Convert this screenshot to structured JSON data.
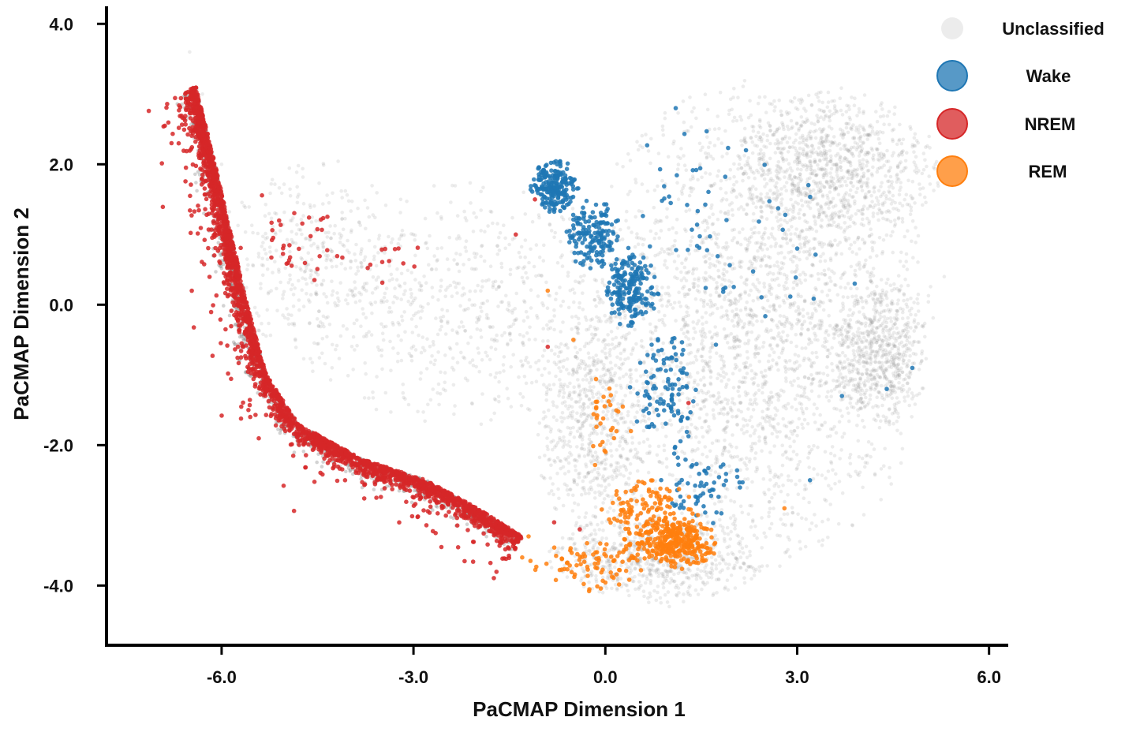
{
  "chart_data": {
    "type": "scatter",
    "title": "",
    "xlabel": "PaCMAP Dimension 1",
    "ylabel": "PaCMAP Dimension 2",
    "xlim": [
      -7.8,
      6.3
    ],
    "ylim": [
      -4.85,
      4.25
    ],
    "x_ticks": [
      -6.0,
      -3.0,
      0.0,
      3.0,
      6.0
    ],
    "y_ticks": [
      -4.0,
      -2.0,
      0.0,
      2.0,
      4.0
    ],
    "x_tick_labels": [
      "-6.0",
      "-3.0",
      "0.0",
      "3.0",
      "6.0"
    ],
    "y_tick_labels": [
      "-4.0",
      "-2.0",
      "0.0",
      "2.0",
      "4.0"
    ],
    "grid": false,
    "legend_position": "top-right",
    "series": [
      {
        "name": "Unclassified",
        "color": "#808080",
        "opacity": 0.15,
        "regions": [
          {
            "cx": 2.3,
            "cy": -0.3,
            "rx": 2.6,
            "ry": 3.2,
            "n": 2600
          },
          {
            "cx": 3.6,
            "cy": 1.9,
            "rx": 1.5,
            "ry": 1.1,
            "n": 900
          },
          {
            "cx": 4.3,
            "cy": -0.7,
            "rx": 0.7,
            "ry": 1.0,
            "n": 600
          },
          {
            "cx": 0.8,
            "cy": -3.6,
            "rx": 1.6,
            "ry": 0.6,
            "n": 700
          },
          {
            "cx": -0.2,
            "cy": -1.8,
            "rx": 0.8,
            "ry": 1.6,
            "n": 600
          },
          {
            "cx": -2.2,
            "cy": 0.0,
            "rx": 2.6,
            "ry": 1.6,
            "n": 700
          },
          {
            "cx": -4.6,
            "cy": 0.7,
            "rx": 1.3,
            "ry": 1.3,
            "n": 300
          }
        ],
        "points": [
          [
            -6.5,
            3.6
          ],
          [
            -6.3,
            3.0
          ],
          [
            -6.0,
            2.0
          ],
          [
            -5.6,
            0.5
          ],
          [
            -3.2,
            1.5
          ],
          [
            5.3,
            0.4
          ],
          [
            1.0,
            -4.3
          ]
        ]
      },
      {
        "name": "Wake",
        "color": "#1f77b4",
        "opacity": 0.85,
        "regions": [
          {
            "cx": -0.8,
            "cy": 1.7,
            "rx": 0.35,
            "ry": 0.35,
            "n": 220
          },
          {
            "cx": -0.2,
            "cy": 1.0,
            "rx": 0.4,
            "ry": 0.45,
            "n": 160
          },
          {
            "cx": 0.4,
            "cy": 0.2,
            "rx": 0.4,
            "ry": 0.5,
            "n": 200
          },
          {
            "cx": 0.9,
            "cy": -1.2,
            "rx": 0.5,
            "ry": 0.9,
            "n": 110
          },
          {
            "cx": 1.5,
            "cy": -2.6,
            "rx": 0.6,
            "ry": 0.5,
            "n": 60
          },
          {
            "cx": 1.8,
            "cy": 1.0,
            "rx": 1.7,
            "ry": 1.5,
            "n": 55
          }
        ],
        "points": [
          [
            4.8,
            -0.9
          ],
          [
            4.4,
            -1.2
          ],
          [
            3.2,
            -2.5
          ],
          [
            3.0,
            0.8
          ],
          [
            1.1,
            2.8
          ],
          [
            2.2,
            2.2
          ],
          [
            3.7,
            -1.3
          ],
          [
            3.9,
            0.3
          ]
        ]
      },
      {
        "name": "NREM",
        "color": "#d62728",
        "opacity": 0.85,
        "regions": [
          {
            "cx": -4.9,
            "cy": 0.9,
            "rx": 0.9,
            "ry": 0.8,
            "n": 35
          },
          {
            "cx": -3.3,
            "cy": 0.6,
            "rx": 0.6,
            "ry": 0.5,
            "n": 12
          }
        ],
        "points": [
          [
            -0.9,
            -0.6
          ],
          [
            -1.4,
            1.0
          ],
          [
            -1.1,
            1.5
          ],
          [
            -0.4,
            -3.2
          ],
          [
            1.3,
            -1.4
          ],
          [
            -0.8,
            -3.1
          ]
        ]
      },
      {
        "name": "REM",
        "color": "#ff7f0e",
        "opacity": 0.85,
        "regions": [
          {
            "cx": 1.1,
            "cy": -3.4,
            "rx": 0.6,
            "ry": 0.35,
            "n": 320
          },
          {
            "cx": 0.7,
            "cy": -3.0,
            "rx": 0.7,
            "ry": 0.5,
            "n": 140
          },
          {
            "cx": -0.2,
            "cy": -3.7,
            "rx": 0.9,
            "ry": 0.35,
            "n": 90
          },
          {
            "cx": 0.0,
            "cy": -1.6,
            "rx": 0.3,
            "ry": 0.8,
            "n": 30
          }
        ],
        "points": [
          [
            -0.9,
            0.2
          ],
          [
            -0.5,
            -0.5
          ],
          [
            0.4,
            -1.8
          ],
          [
            2.8,
            -2.9
          ],
          [
            -1.2,
            -3.3
          ],
          [
            -1.3,
            -3.6
          ]
        ]
      }
    ]
  },
  "nrem_arc": {
    "path": [
      [
        -6.4,
        3.1
      ],
      [
        -6.1,
        2.0
      ],
      [
        -5.85,
        1.0
      ],
      [
        -5.6,
        0.0
      ],
      [
        -5.3,
        -1.0
      ],
      [
        -4.8,
        -1.7
      ],
      [
        -3.8,
        -2.2
      ],
      [
        -2.8,
        -2.5
      ],
      [
        -2.0,
        -2.9
      ],
      [
        -1.3,
        -3.3
      ]
    ],
    "n": 2600,
    "spread": [
      0.14,
      0.35
    ]
  },
  "legend": {
    "items": [
      {
        "label": "Unclassified",
        "color": "#d9d9d9",
        "opacity": 0.5
      },
      {
        "label": "Wake",
        "color": "#1f77b4",
        "opacity": 0.75
      },
      {
        "label": "NREM",
        "color": "#d62728",
        "opacity": 0.75
      },
      {
        "label": "REM",
        "color": "#ff7f0e",
        "opacity": 0.75
      }
    ]
  }
}
